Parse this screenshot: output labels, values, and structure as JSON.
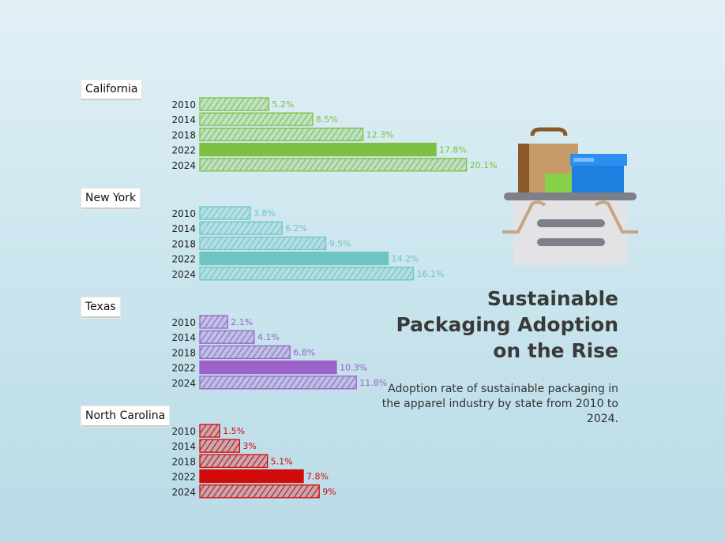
{
  "title": "Sustainable\nPackaging Adoption\non the Rise",
  "subtitle": "Adoption rate of sustainable packaging in the apparel industry by state from 2010 to 2024.",
  "illustration": "shopping-basket-with-packages-icon",
  "chart_data": {
    "type": "bar",
    "orientation": "horizontal",
    "unit": "%",
    "categories": [
      "2010",
      "2014",
      "2018",
      "2022",
      "2024"
    ],
    "series": [
      {
        "name": "California",
        "color": "#7cc142",
        "values": [
          5.2,
          8.5,
          12.3,
          17.8,
          20.1
        ]
      },
      {
        "name": "New York",
        "color": "#6dc5c3",
        "values": [
          3.8,
          6.2,
          9.5,
          14.2,
          16.1
        ]
      },
      {
        "name": "Texas",
        "color": "#9b62c9",
        "values": [
          2.1,
          4.1,
          6.8,
          10.3,
          11.8
        ]
      },
      {
        "name": "North Carolina",
        "color": "#d20a0a",
        "values": [
          1.5,
          3,
          5.1,
          7.8,
          9
        ]
      }
    ],
    "value_labels": [
      [
        "5.2%",
        "8.5%",
        "12.3%",
        "17.8%",
        "20.1%"
      ],
      [
        "3.8%",
        "6.2%",
        "9.5%",
        "14.2%",
        "16.1%"
      ],
      [
        "2.1%",
        "4.1%",
        "6.8%",
        "10.3%",
        "11.8%"
      ],
      [
        "1.5%",
        "3%",
        "5.1%",
        "7.8%",
        "9%"
      ]
    ]
  }
}
